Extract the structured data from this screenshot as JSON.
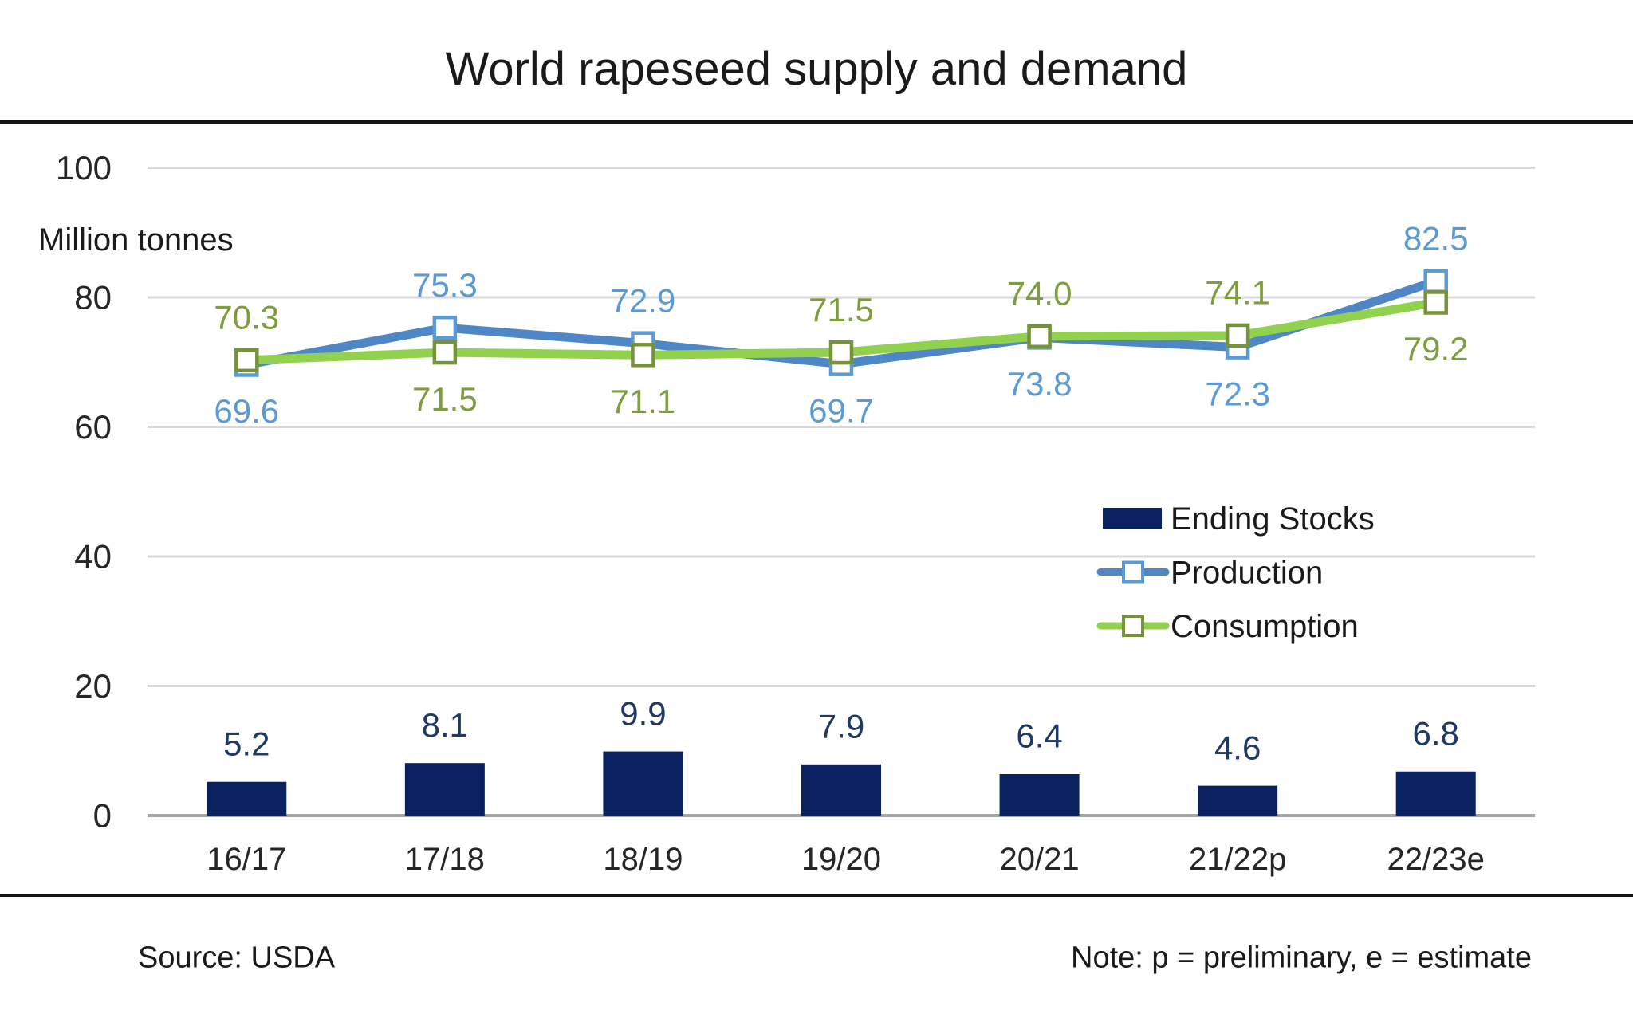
{
  "title": "World rapeseed supply and demand",
  "y_axis": {
    "unit_label": "Million tonnes",
    "ticks": [
      0,
      20,
      40,
      60,
      80,
      100
    ],
    "range": [
      0,
      100
    ]
  },
  "footer": {
    "source": "Source: USDA",
    "note": "Note: p = preliminary, e = estimate"
  },
  "colors": {
    "grid": "#D9D9D9",
    "axis_line": "#A6A6A6",
    "rule": "#141414",
    "text": "#1a1a1a"
  },
  "chart_data": {
    "type": "combo",
    "title": "World rapeseed supply and demand",
    "ylabel": "Million tonnes",
    "ylim": [
      0,
      100
    ],
    "yticks": [
      0,
      20,
      40,
      60,
      80,
      100
    ],
    "grid": true,
    "legend_position": "middle-right",
    "categories": [
      "16/17",
      "17/18",
      "18/19",
      "19/20",
      "20/21",
      "21/22p",
      "22/23e"
    ],
    "series": [
      {
        "name": "Ending Stocks",
        "type": "bar",
        "fill": "#0A2160",
        "label_color": "#1F3864",
        "values": [
          5.2,
          8.1,
          9.9,
          7.9,
          6.4,
          4.6,
          6.8
        ]
      },
      {
        "name": "Production",
        "type": "line",
        "line_color": "#4F86C6",
        "marker_color": "#5B9BD5",
        "label_color": "#5B9BD5",
        "marker": "open-square",
        "values": [
          69.6,
          75.3,
          72.9,
          69.7,
          73.8,
          72.3,
          82.5
        ],
        "label_side": [
          "below",
          "above",
          "above",
          "below",
          "below",
          "below",
          "above"
        ]
      },
      {
        "name": "Consumption",
        "type": "line",
        "line_color": "#92D050",
        "marker_color": "#76933C",
        "label_color": "#7F9D3F",
        "marker": "open-square",
        "values": [
          70.3,
          71.5,
          71.1,
          71.5,
          74.0,
          74.1,
          79.2
        ],
        "label_side": [
          "above",
          "below",
          "below",
          "above",
          "above",
          "above",
          "below"
        ]
      }
    ]
  }
}
